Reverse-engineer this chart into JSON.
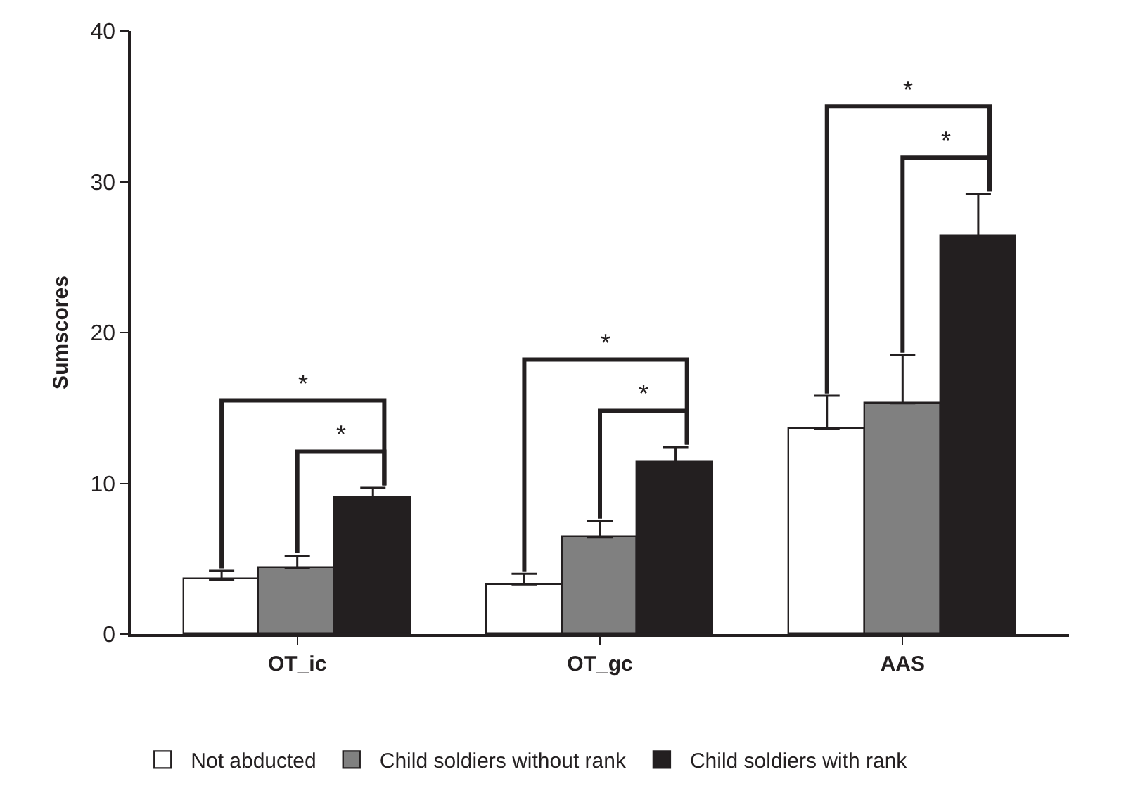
{
  "chart_data": {
    "type": "bar",
    "ylabel": "Sumscores",
    "categories": [
      "OT_ic",
      "OT_gc",
      "AAS"
    ],
    "series": [
      {
        "name": "Not abducted",
        "color": "#ffffff",
        "values": [
          3.6,
          3.3,
          13.6
        ],
        "errors": [
          [
            3.6,
            4.2
          ],
          [
            3.3,
            4.0
          ],
          [
            13.6,
            15.8
          ]
        ]
      },
      {
        "name": "Child soldiers without rank",
        "color": "#808080",
        "values": [
          4.4,
          6.4,
          15.3
        ],
        "errors": [
          [
            4.4,
            5.2
          ],
          [
            6.4,
            7.5
          ],
          [
            15.3,
            18.5
          ]
        ]
      },
      {
        "name": "Child soldiers with rank",
        "color": "#231f20",
        "values": [
          9.0,
          11.4,
          26.4
        ],
        "errors": [
          [
            9.0,
            9.7
          ],
          [
            11.4,
            12.4
          ],
          [
            26.4,
            29.2
          ]
        ]
      }
    ],
    "ylim": [
      0,
      40
    ],
    "yticks": [
      0,
      10,
      20,
      30,
      40
    ],
    "grid": false,
    "legend": "bottom",
    "annotations": [
      "*",
      "*",
      "*",
      "*",
      "*",
      "*"
    ]
  }
}
